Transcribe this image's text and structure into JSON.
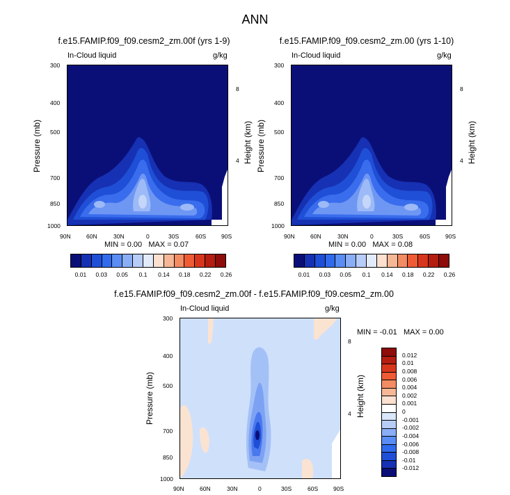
{
  "main_title": "ANN",
  "chart_data": [
    {
      "type": "heatmap",
      "title": "f.e15.FAMIP.f09_f09.cesm2_zm.00f (yrs 1-9)",
      "left_label": "In-Cloud liquid",
      "right_label": "g/kg",
      "xlabel": "",
      "ylabel": "Pressure (mb)",
      "ylabel_right": "Height (km)",
      "x_ticks": [
        "90N",
        "60N",
        "30N",
        "0",
        "30S",
        "60S",
        "90S"
      ],
      "y_ticks": [
        "300",
        "400",
        "500",
        "700",
        "850",
        "1000"
      ],
      "y_right_ticks": [
        "8",
        "4"
      ],
      "stats": {
        "min_label": "MIN =",
        "min": "0.00",
        "max_label": "MAX =",
        "max": "0.07"
      }
    },
    {
      "type": "heatmap",
      "title": "f.e15.FAMIP.f09_f09.cesm2_zm.00 (yrs 1-10)",
      "left_label": "In-Cloud liquid",
      "right_label": "g/kg",
      "xlabel": "",
      "ylabel": "Pressure (mb)",
      "ylabel_right": "Height (km)",
      "x_ticks": [
        "90N",
        "60N",
        "30N",
        "0",
        "30S",
        "60S",
        "90S"
      ],
      "y_ticks": [
        "300",
        "400",
        "500",
        "700",
        "850",
        "1000"
      ],
      "y_right_ticks": [
        "8",
        "4"
      ],
      "stats": {
        "min_label": "MIN =",
        "min": "0.00",
        "max_label": "MAX =",
        "max": "0.08"
      }
    },
    {
      "type": "heatmap",
      "title": "f.e15.FAMIP.f09_f09.cesm2_zm.00f - f.e15.FAMIP.f09_f09.cesm2_zm.00",
      "left_label": "In-Cloud liquid",
      "right_label": "g/kg",
      "xlabel": "",
      "ylabel": "Pressure (mb)",
      "ylabel_right": "Height (km)",
      "x_ticks": [
        "90N",
        "60N",
        "30N",
        "0",
        "30S",
        "60S",
        "90S"
      ],
      "y_ticks": [
        "300",
        "400",
        "500",
        "700",
        "850",
        "1000"
      ],
      "y_right_ticks": [
        "8",
        "4"
      ],
      "stats": {
        "min_label": "MIN =",
        "min": "-0.01",
        "max_label": "MAX =",
        "max": "0.00"
      }
    }
  ],
  "colorbar_top": {
    "colors": [
      "#0a0f78",
      "#1631b3",
      "#1f4fd6",
      "#2f6bec",
      "#5a8df3",
      "#8aaef6",
      "#b7cdf8",
      "#e2ebfa",
      "#fce0d0",
      "#f6b796",
      "#f38b63",
      "#ef5b34",
      "#d8361c",
      "#b41d10",
      "#8e0c0a"
    ],
    "labels": [
      "0.01",
      "0.03",
      "0.05",
      "0.1",
      "0.14",
      "0.18",
      "0.22",
      "0.26"
    ]
  },
  "colorbar_diff": {
    "colors": [
      "#8e0c0a",
      "#b41d10",
      "#d8361c",
      "#ef5b34",
      "#f38b63",
      "#f6b796",
      "#fce0d0",
      "#ffffff",
      "#dbe7fb",
      "#b7cdf8",
      "#8aaef6",
      "#5a8df3",
      "#2f6bec",
      "#1f4fd6",
      "#1631b3",
      "#0a0f78"
    ],
    "labels": [
      "0.012",
      "0.01",
      "0.008",
      "0.006",
      "0.004",
      "0.002",
      "0.001",
      "0",
      "-0.001",
      "-0.002",
      "-0.004",
      "-0.006",
      "-0.008",
      "-0.01",
      "-0.012"
    ]
  },
  "palette": {
    "deep": "#0a0f78",
    "l1": "#1631b3",
    "l2": "#1f4fd6",
    "l3": "#3a6ded",
    "l4": "#6e97f4",
    "l5": "#9dbaf7",
    "l6": "#c4d6f9",
    "diff_bg": "#cfe0fb",
    "diff_pos": "#fbe3d2",
    "diff_white": "#ffffff"
  }
}
